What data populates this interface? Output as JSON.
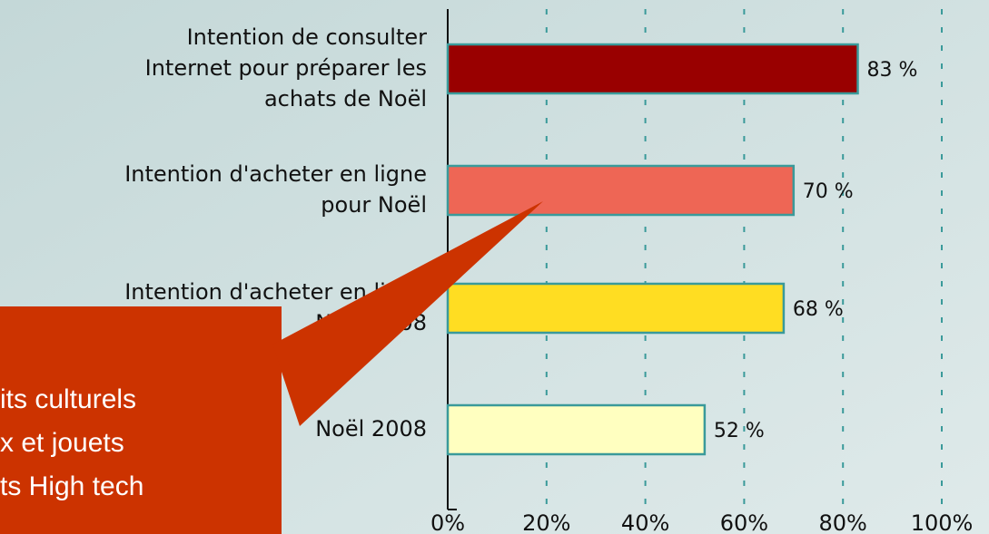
{
  "chart_data": {
    "type": "barh",
    "categories": [
      [
        "Intention de consulter",
        "Internet pour préparer les",
        "achats de Noël"
      ],
      [
        "Intention d'acheter en ligne",
        "pour Noël"
      ],
      [
        "Intention d'acheter en ligne",
        "Noël 2008"
      ],
      [
        "Noël 2008"
      ]
    ],
    "values": [
      83,
      70,
      68,
      52
    ],
    "value_labels": [
      "83 %",
      "70 %",
      "68 %",
      "52 %"
    ],
    "colors": [
      "#990000",
      "#ee6655",
      "#ffdd22",
      "#ffffc0"
    ],
    "xlim": [
      0,
      100
    ],
    "xticks": [
      {
        "value": 0,
        "label": "0%"
      },
      {
        "value": 20,
        "label": "20%"
      },
      {
        "value": 40,
        "label": "40%"
      },
      {
        "value": 60,
        "label": "60%"
      },
      {
        "value": 80,
        "label": "80%"
      },
      {
        "value": 100,
        "label": "100%"
      }
    ],
    "grid": true,
    "callout": [
      "its culturels",
      "x et jouets",
      "ts High tech"
    ]
  }
}
